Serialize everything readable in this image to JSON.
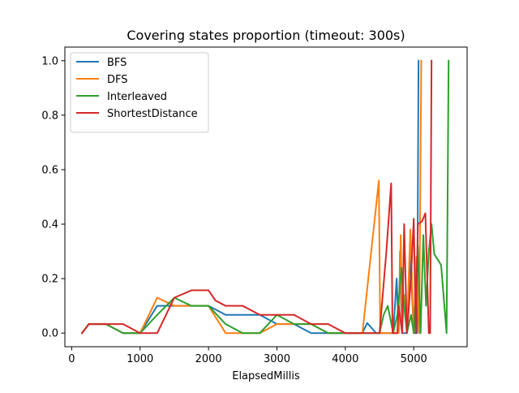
{
  "chart_data": {
    "type": "line",
    "title": "Covering states proportion (timeout: 300s)",
    "xlabel": "ElapsedMillis",
    "ylabel": "",
    "xlim": [
      -100,
      5780
    ],
    "ylim": [
      -0.05,
      1.05
    ],
    "xticks": [
      0,
      1000,
      2000,
      3000,
      4000,
      5000
    ],
    "xtick_labels": [
      "0",
      "1000",
      "2000",
      "3000",
      "4000",
      "5000"
    ],
    "yticks": [
      0.0,
      0.2,
      0.4,
      0.6,
      0.8,
      1.0
    ],
    "ytick_labels": [
      "0.0",
      "0.2",
      "0.4",
      "0.6",
      "0.8",
      "1.0"
    ],
    "grid": false,
    "legend_position": "top-left",
    "series": [
      {
        "name": "BFS",
        "color": "#1f77b4",
        "x": [
          150,
          250,
          500,
          750,
          1000,
          1250,
          1500,
          1750,
          2000,
          2250,
          2500,
          2750,
          3000,
          3250,
          3500,
          3750,
          4000,
          4250,
          4320,
          4450,
          4500,
          4700,
          4750,
          4780,
          4800,
          4830,
          4900,
          4950,
          5000,
          5050,
          5070
        ],
        "y": [
          0.0,
          0.033,
          0.033,
          0.0,
          0.0,
          0.1,
          0.1,
          0.1,
          0.1,
          0.067,
          0.067,
          0.067,
          0.033,
          0.033,
          0.0,
          0.0,
          0.0,
          0.0,
          0.037,
          0.0,
          0.0,
          0.0,
          0.2,
          0.0,
          0.3,
          0.0,
          0.0,
          0.29,
          0.0,
          0.0,
          1.0
        ]
      },
      {
        "name": "DFS",
        "color": "#ff7f0e",
        "x": [
          150,
          250,
          500,
          750,
          1000,
          1250,
          1500,
          1750,
          2000,
          2250,
          2500,
          2750,
          3000,
          3250,
          3500,
          3750,
          4000,
          4250,
          4490,
          4510,
          4700,
          4740,
          4780,
          4810,
          4830,
          4860,
          4900,
          4950,
          5000,
          5040,
          5080,
          5110
        ],
        "y": [
          0.0,
          0.033,
          0.033,
          0.0,
          0.0,
          0.13,
          0.1,
          0.1,
          0.1,
          0.0,
          0.0,
          0.0,
          0.033,
          0.033,
          0.033,
          0.0,
          0.0,
          0.0,
          0.56,
          0.0,
          0.0,
          0.0,
          0.0,
          0.36,
          0.0,
          0.14,
          0.0,
          0.38,
          0.0,
          0.28,
          0.0,
          1.0
        ]
      },
      {
        "name": "Interleaved",
        "color": "#2ca02c",
        "x": [
          150,
          250,
          500,
          750,
          1000,
          1250,
          1500,
          1750,
          2000,
          2250,
          2500,
          2750,
          3000,
          3250,
          3500,
          3750,
          4000,
          4250,
          4500,
          4560,
          4620,
          4700,
          4760,
          4820,
          4860,
          4900,
          4960,
          5000,
          5060,
          5100,
          5140,
          5180,
          5220,
          5260,
          5300,
          5400,
          5480,
          5510
        ],
        "y": [
          0.0,
          0.033,
          0.033,
          0.0,
          0.0,
          0.067,
          0.13,
          0.1,
          0.1,
          0.033,
          0.0,
          0.0,
          0.067,
          0.033,
          0.033,
          0.0,
          0.0,
          0.0,
          0.0,
          0.067,
          0.1,
          0.0,
          0.067,
          0.24,
          0.1,
          0.0,
          0.067,
          0.0,
          0.32,
          0.0,
          0.36,
          0.1,
          0.3,
          0.4,
          0.29,
          0.25,
          0.0,
          1.0
        ]
      },
      {
        "name": "ShortestDistance",
        "color": "#d62728",
        "x": [
          150,
          250,
          500,
          750,
          1000,
          1250,
          1500,
          1750,
          2000,
          2100,
          2250,
          2500,
          2750,
          3000,
          3250,
          3500,
          3750,
          4000,
          4250,
          4500,
          4600,
          4670,
          4690,
          4760,
          4780,
          4830,
          4860,
          4900,
          4960,
          5000,
          5030,
          5060,
          5120,
          5170,
          5220,
          5240,
          5260
        ],
        "y": [
          0.0,
          0.033,
          0.033,
          0.033,
          0.0,
          0.0,
          0.13,
          0.157,
          0.157,
          0.12,
          0.1,
          0.1,
          0.067,
          0.067,
          0.067,
          0.033,
          0.033,
          0.0,
          0.0,
          0.0,
          0.3,
          0.55,
          0.0,
          0.0,
          0.1,
          0.0,
          0.4,
          0.0,
          0.2,
          0.42,
          0.0,
          0.4,
          0.41,
          0.44,
          0.0,
          0.0,
          1.0
        ]
      }
    ]
  }
}
